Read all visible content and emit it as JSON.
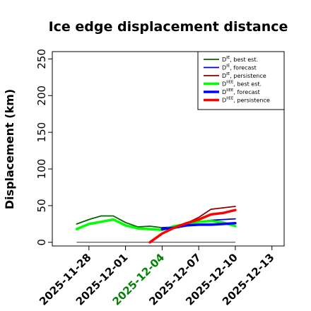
{
  "chart_data": {
    "type": "line",
    "title": "Ice edge displacement distance",
    "xlabel": "",
    "ylabel": "Displacement (km)",
    "x_ticks": [
      "2025-11-28",
      "2025-12-01",
      "2025-12-04",
      "2025-12-07",
      "2025-12-10",
      "2025-12-13"
    ],
    "x_tick_colors": [
      "#000000",
      "#000000",
      "#008000",
      "#000000",
      "#000000",
      "#000000"
    ],
    "xlim": [
      "2025-11-25",
      "2025-12-14"
    ],
    "ylim": [
      -5,
      260
    ],
    "y_ticks": [
      0,
      50,
      100,
      150,
      200,
      250
    ],
    "grid": false,
    "legend_position": "top-right",
    "series": [
      {
        "name": "D^IE, best est.",
        "label_base": "D",
        "label_sup": "IE",
        "label_rest": ", best est.",
        "color": "#006400",
        "width": 1.8,
        "x": [
          "2025-11-27",
          "2025-11-28",
          "2025-11-29",
          "2025-11-30",
          "2025-12-01",
          "2025-12-02",
          "2025-12-03",
          "2025-12-04"
        ],
        "y": [
          25,
          31,
          36,
          36,
          27,
          21,
          22,
          20
        ]
      },
      {
        "name": "D^IE, forecast",
        "label_base": "D",
        "label_sup": "IE",
        "label_rest": ", forecast",
        "color": "#0000cd",
        "width": 1.8,
        "x": [
          "2025-12-04",
          "2025-12-05",
          "2025-12-06",
          "2025-12-07",
          "2025-12-08",
          "2025-12-09",
          "2025-12-10"
        ],
        "y": [
          20,
          21,
          24,
          28,
          30,
          31,
          32
        ]
      },
      {
        "name": "D^IE, persistence",
        "label_base": "D",
        "label_sup": "IE",
        "label_rest": ", persistence",
        "color": "#8b0000",
        "width": 1.8,
        "x": [
          "2025-12-04",
          "2025-12-05",
          "2025-12-06",
          "2025-12-07",
          "2025-12-08",
          "2025-12-09",
          "2025-12-10"
        ],
        "y": [
          17,
          21,
          26,
          34,
          45,
          47,
          49
        ]
      },
      {
        "name": "D^IIEE, best est.",
        "label_base": "D",
        "label_sup": "IIEE",
        "label_rest": ", best est.",
        "color": "#00ff00",
        "width": 3.5,
        "x": [
          "2025-11-27",
          "2025-11-28",
          "2025-11-29",
          "2025-11-30",
          "2025-12-01",
          "2025-12-02",
          "2025-12-03",
          "2025-12-04",
          "2025-12-05",
          "2025-12-06",
          "2025-12-07",
          "2025-12-08",
          "2025-12-09",
          "2025-12-10"
        ],
        "y": [
          18,
          25,
          28,
          31,
          23,
          19,
          18,
          17,
          22,
          25,
          28,
          29,
          27,
          22
        ]
      },
      {
        "name": "D^IIEE, forecast",
        "label_base": "D",
        "label_sup": "IIEE",
        "label_rest": ", forecast",
        "color": "#0000ff",
        "width": 3.5,
        "x": [
          "2025-12-04",
          "2025-12-05",
          "2025-12-06",
          "2025-12-07",
          "2025-12-08",
          "2025-12-09",
          "2025-12-10"
        ],
        "y": [
          18,
          20,
          23,
          24,
          24,
          25,
          26
        ]
      },
      {
        "name": "D^IIEE, persistence",
        "label_base": "D",
        "label_sup": "IIEE",
        "label_rest": ", persistence",
        "color": "#ff0000",
        "width": 3.5,
        "x": [
          "2025-12-03",
          "2025-12-04",
          "2025-12-05",
          "2025-12-06",
          "2025-12-07",
          "2025-12-08",
          "2025-12-09",
          "2025-12-10"
        ],
        "y": [
          0,
          12,
          20,
          26,
          31,
          38,
          40,
          44
        ]
      }
    ],
    "reference_line": {
      "color": "#333333",
      "x": [
        "2025-11-27",
        "2025-12-10"
      ],
      "y": [
        0,
        0
      ]
    }
  }
}
